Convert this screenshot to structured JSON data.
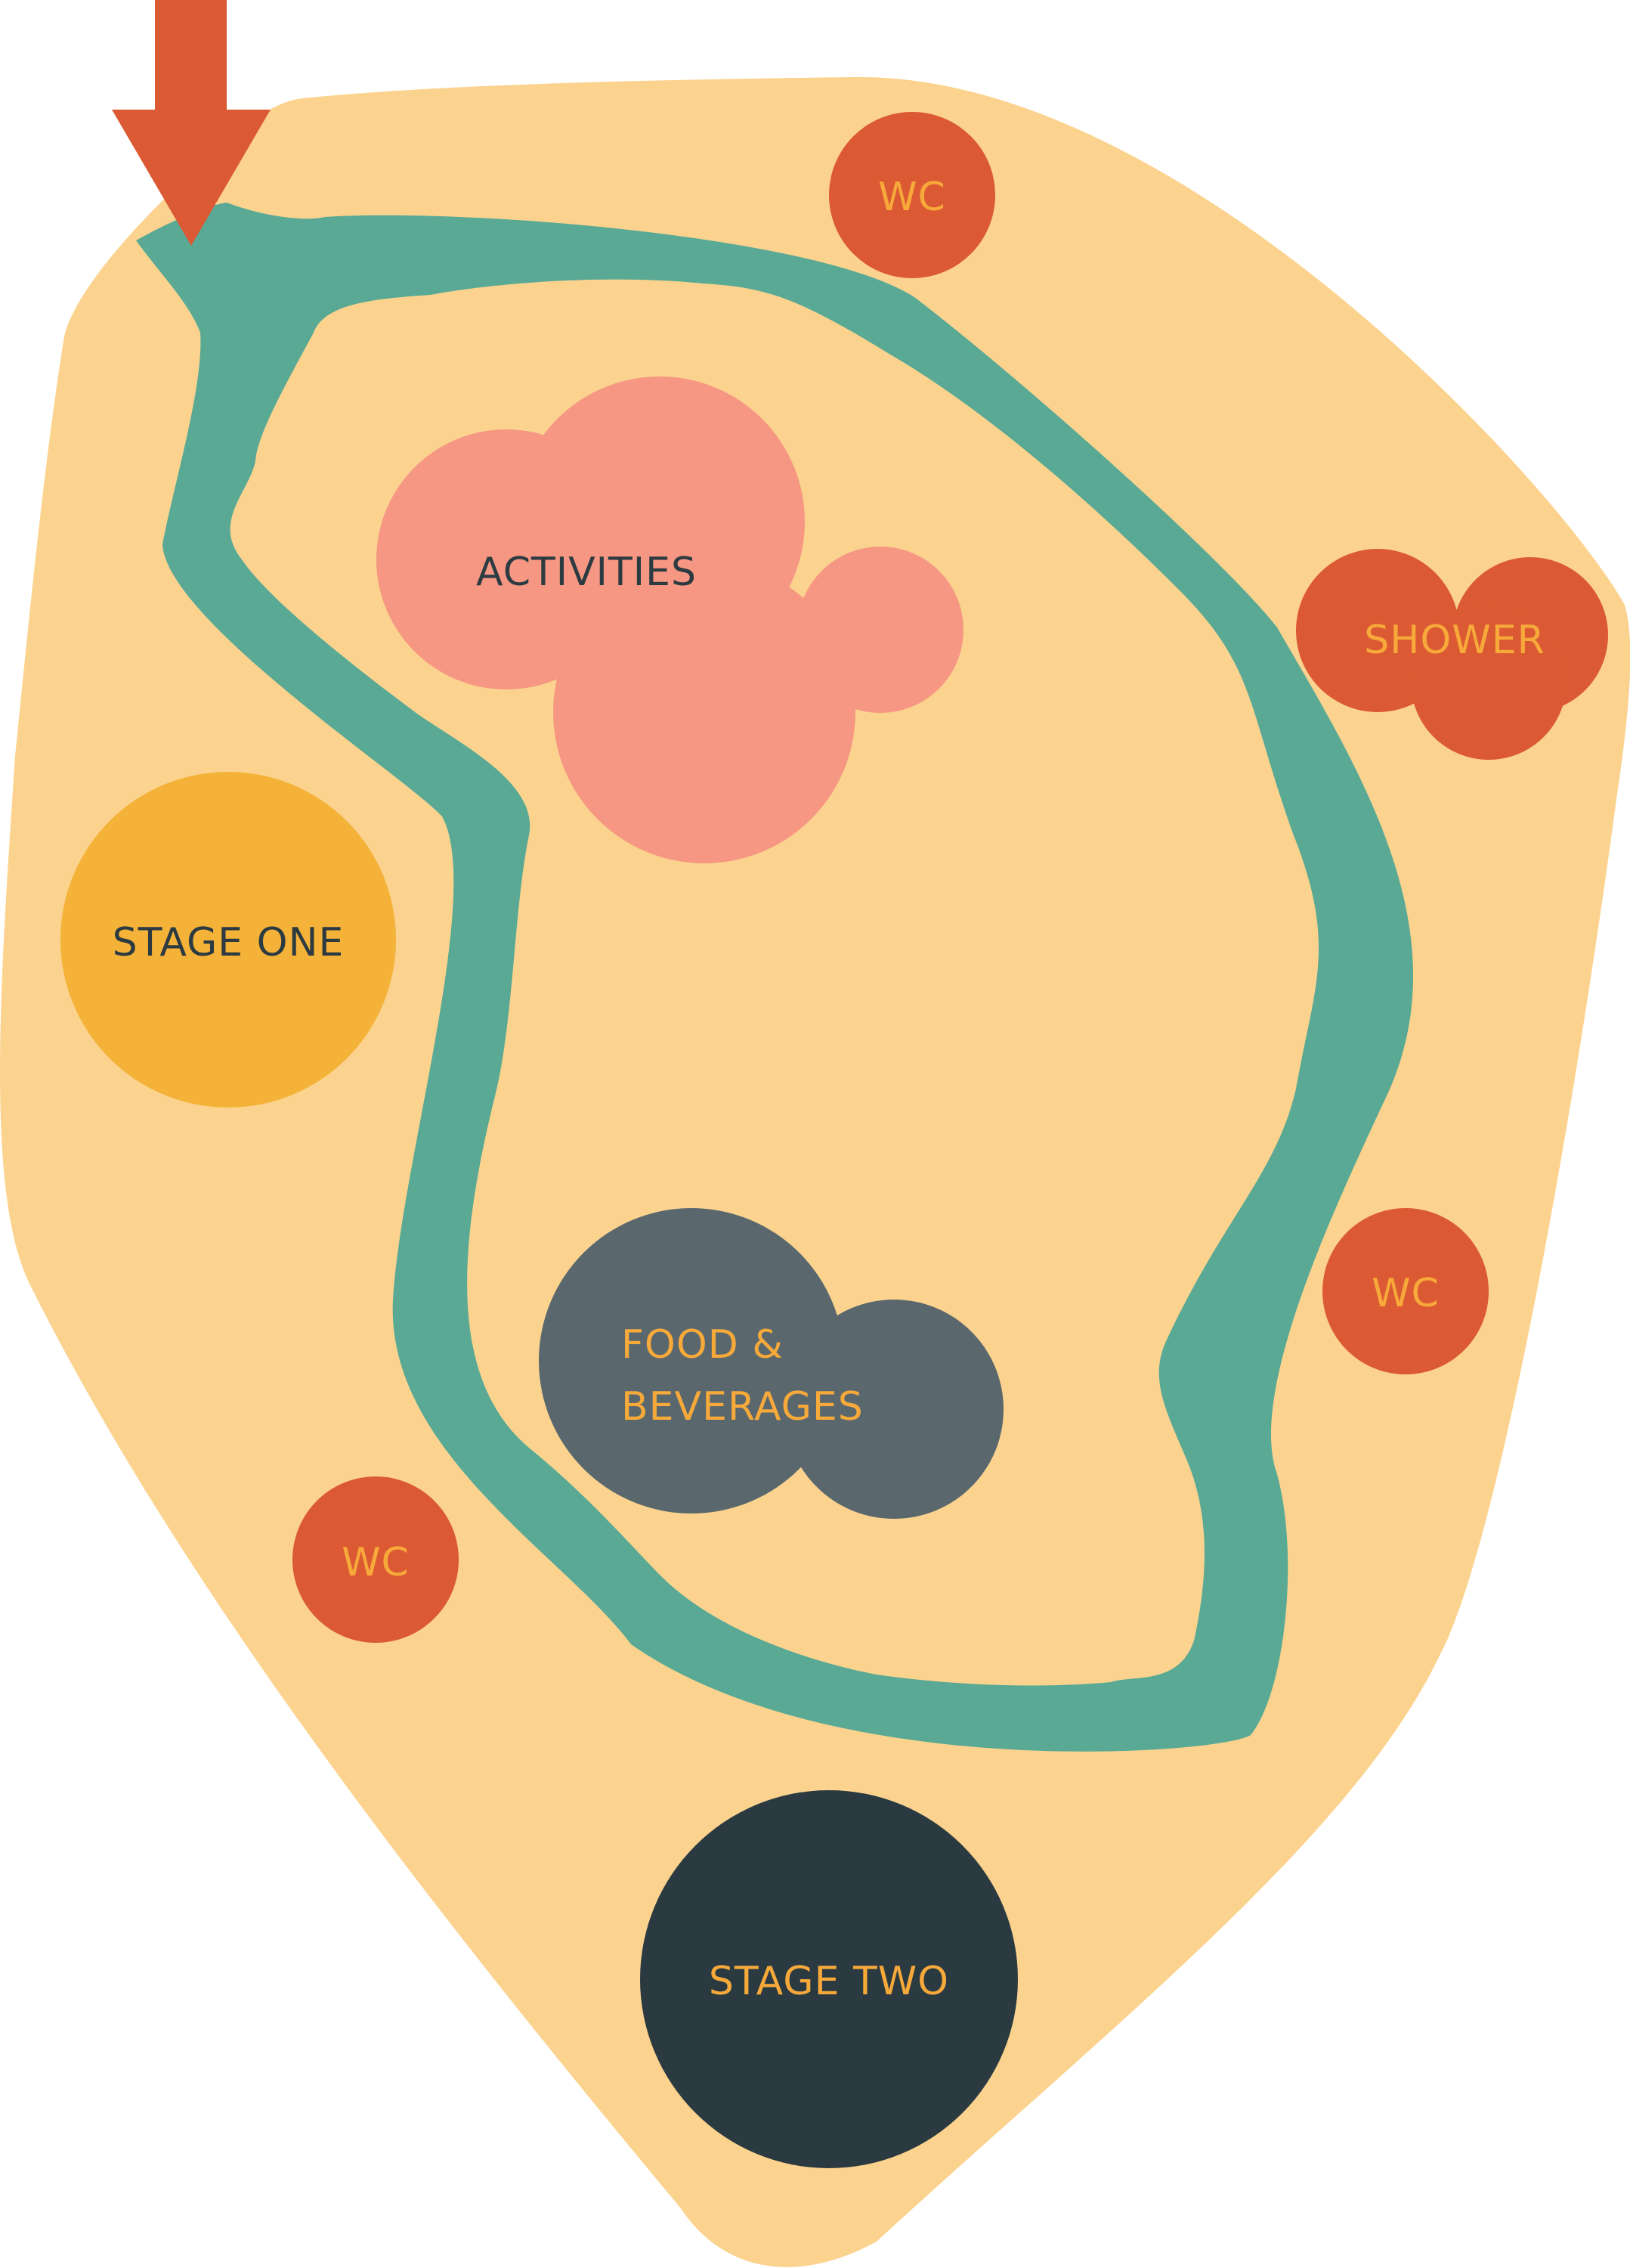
{
  "colors": {
    "ground": "#FBD38F",
    "path": "#59A995",
    "entrance_arrow": "#DC5A33",
    "facility": "#DC5A33",
    "facility_text": "#F7A93A",
    "activities": "#F59782",
    "activities_text": "#2C3A41",
    "stage_one": "#F4B238",
    "stage_one_text": "#2C3A41",
    "food": "#5A686D",
    "food_text": "#F7A93A",
    "stage_two": "#2B3A40",
    "stage_two_text": "#F7A93A"
  },
  "zones": {
    "wc_top": "WC",
    "shower": "SHOWER",
    "activities": "ACTIVITIES",
    "stage_one": "STAGE ONE",
    "wc_right": "WC",
    "food_line1": "FOOD &",
    "food_line2": "BEVERAGES",
    "wc_left": "WC",
    "stage_two": "STAGE TWO"
  },
  "icons": {
    "entrance": "down-arrow-icon"
  }
}
